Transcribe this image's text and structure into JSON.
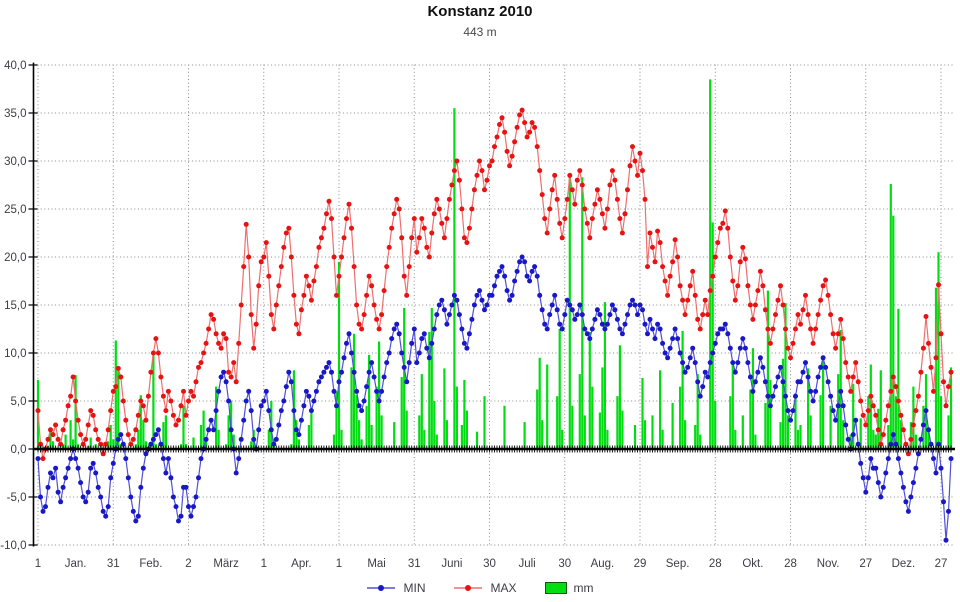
{
  "header": {
    "title": "Konstanz 2010",
    "subtitle": "443 m"
  },
  "legend": {
    "min_label": "MIN",
    "max_label": "MAX",
    "mm_label": "mm"
  },
  "chart_data": {
    "type": "line+bar",
    "title": "Konstanz 2010",
    "subtitle": "443 m",
    "grid": true,
    "legend_position": "bottom-center",
    "ylim": [
      -10,
      40
    ],
    "y_tick_step": 5,
    "y_tick_labels": [
      "40,0",
      "35,0",
      "30,0",
      "25,0",
      "20,0",
      "15,0",
      "10,0",
      "5,0",
      "0,0",
      "-5,0",
      "-10,0"
    ],
    "x_tick_days": [
      1,
      31,
      61,
      91,
      121,
      151,
      181,
      211,
      241,
      271,
      301,
      331,
      361
    ],
    "x_tick_labels": [
      "1",
      "31",
      "2",
      "1",
      "1",
      "31",
      "30",
      "30",
      "29",
      "28",
      "28",
      "27",
      "27"
    ],
    "month_labels": [
      "Jan.",
      "Feb.",
      "März",
      "Apr.",
      "Mai",
      "Juni",
      "Juli",
      "Aug.",
      "Sep.",
      "Okt.",
      "Nov.",
      "Dez."
    ],
    "days_in_month": [
      31,
      28,
      31,
      30,
      31,
      30,
      31,
      31,
      30,
      31,
      30,
      31
    ],
    "colors": {
      "min_marker": "#1818c8",
      "min_line": "#5050d8",
      "max_marker": "#e81212",
      "max_line": "#ef6f6f",
      "bar": "#00dd11",
      "bar_edge": "#0a5a0a",
      "axis": "#000000",
      "grid": "#8a8a8a",
      "label": "#3d3d46"
    },
    "series": [
      {
        "name": "MIN",
        "type": "line",
        "values": [
          -1,
          -5,
          -6.5,
          -6,
          -4,
          -2.5,
          -3,
          -2,
          -4.5,
          -5.5,
          -4,
          -3,
          -2,
          -1,
          0,
          -1,
          -2,
          -3.5,
          -5,
          -5.5,
          -4.5,
          -2,
          -1.5,
          -2.5,
          -4,
          -5,
          -6.5,
          -7,
          -6,
          -3,
          -1.5,
          0,
          1,
          1.5,
          0.5,
          -1,
          -3,
          -5,
          -6.5,
          -7.5,
          -7,
          -4,
          -2,
          -0.5,
          0,
          0.5,
          1,
          1.5,
          2,
          0.5,
          -1,
          -2.5,
          -1,
          -3,
          -5,
          -6,
          -7.5,
          -7,
          -4,
          -4,
          -6,
          -7,
          -6,
          -5,
          -3,
          -1,
          0,
          1,
          2,
          3,
          2,
          4,
          6,
          7.5,
          8,
          7,
          5,
          2,
          0,
          -2.5,
          -1,
          1,
          3,
          5,
          6,
          4,
          1,
          0,
          2,
          4.5,
          5,
          6,
          4,
          2,
          0.5,
          1,
          2.5,
          4,
          5,
          6.5,
          8,
          7,
          4,
          2,
          1.5,
          3,
          4.5,
          6,
          5.5,
          4,
          5,
          6,
          7,
          7.5,
          8,
          8.5,
          9,
          8,
          6,
          4.5,
          7,
          8,
          9.5,
          11,
          12,
          10,
          8,
          6,
          4.5,
          4,
          5,
          6.5,
          8,
          9,
          7.5,
          6,
          5,
          6,
          7.5,
          9,
          10,
          11.5,
          12.5,
          13,
          12,
          10,
          8.5,
          7,
          9,
          11,
          12.5,
          9,
          10,
          11.5,
          12,
          10.5,
          9.5,
          11,
          12.5,
          14,
          15,
          15.5,
          14.5,
          13,
          14,
          15,
          16,
          15.5,
          14,
          12.5,
          11,
          10.5,
          12,
          13.5,
          15,
          16,
          16.5,
          15.5,
          14.5,
          15,
          16,
          16,
          17,
          18,
          18.5,
          19,
          18,
          16.5,
          15.5,
          16,
          17.5,
          18.5,
          19.5,
          20,
          19.5,
          18,
          17.5,
          18.5,
          19,
          18,
          16,
          14.5,
          13,
          12.5,
          14,
          15,
          16,
          14.5,
          13,
          12.5,
          14,
          15.5,
          15,
          14.5,
          13.5,
          14,
          15,
          14,
          12.5,
          12,
          11.5,
          12.5,
          13.5,
          14.5,
          14,
          13,
          12.5,
          13,
          14,
          15,
          14.5,
          13.5,
          12.5,
          12,
          13,
          14,
          15,
          15.5,
          15,
          14,
          15,
          14.5,
          13,
          12,
          13.5,
          12.5,
          11.5,
          13,
          12.5,
          11,
          10,
          9.5,
          10.5,
          11.5,
          12.5,
          11.5,
          10,
          9,
          8,
          8.5,
          9.5,
          10.5,
          9,
          7,
          5.5,
          6.5,
          8,
          7.5,
          9,
          10,
          11,
          12,
          12.5,
          12.5,
          13,
          12,
          10.5,
          9,
          8,
          9,
          10.5,
          11.5,
          10.5,
          9,
          7.5,
          6,
          7,
          8,
          9.5,
          8.5,
          7,
          5.5,
          4.5,
          5.5,
          6.5,
          7.5,
          8.5,
          7,
          5.5,
          4,
          3,
          4,
          5.5,
          7,
          7,
          8,
          9,
          7.5,
          6,
          5,
          6,
          7.5,
          8.5,
          9.5,
          8.5,
          7,
          5.5,
          4,
          3,
          4.5,
          6,
          4.5,
          2.5,
          1,
          0,
          1.5,
          3,
          0.5,
          -1.5,
          -3,
          -4.5,
          -3,
          -1,
          -2,
          -2,
          -3.5,
          -5,
          -4,
          -2.5,
          -1,
          0.5,
          1.5,
          0.5,
          -1,
          -2.5,
          -4,
          -5.5,
          -6.5,
          -5,
          -3.5,
          -2,
          -0.5,
          1,
          2.5,
          4,
          2,
          0.5,
          -1,
          -2.5,
          0.5,
          -2,
          -5.5,
          -9.5,
          -6.5,
          -1
        ]
      },
      {
        "name": "MAX",
        "type": "line",
        "values": [
          4,
          0.5,
          -1,
          0,
          1,
          2,
          1.5,
          2.5,
          1,
          0.5,
          2,
          3,
          4.5,
          5.5,
          7.5,
          5,
          3,
          1.5,
          0.5,
          1,
          2.5,
          4,
          3.5,
          2,
          1,
          0.5,
          -0.5,
          0.5,
          2,
          4,
          6,
          6.5,
          8.4,
          7.5,
          5,
          3,
          1.5,
          0.5,
          1,
          2,
          3.5,
          5,
          4.5,
          3,
          5.5,
          8,
          10,
          11.5,
          10,
          7.5,
          5.5,
          4,
          6,
          5,
          3.5,
          2.5,
          3,
          4.5,
          6,
          3.5,
          5,
          6,
          5.5,
          7,
          8.5,
          9,
          10,
          11,
          12.5,
          14,
          13.5,
          12,
          11,
          10.5,
          12,
          11.5,
          8,
          7.5,
          9,
          7,
          11,
          15,
          19,
          23.4,
          20,
          14,
          10.5,
          13,
          17,
          19.5,
          20,
          21.5,
          18,
          14,
          12.5,
          15,
          17,
          19,
          21,
          22.5,
          23,
          20,
          16,
          13,
          12,
          14.5,
          16,
          18,
          17,
          15.5,
          17.5,
          19,
          21,
          22,
          23,
          24.5,
          25.8,
          24,
          20,
          16,
          18,
          20,
          22,
          24,
          25.5,
          23,
          19,
          15,
          13,
          12.5,
          14,
          16,
          18,
          17,
          15,
          13.5,
          12.5,
          14,
          16.5,
          19,
          21,
          23,
          24.5,
          26,
          25,
          22,
          18,
          16,
          19,
          22,
          24,
          20.5,
          22,
          24,
          23,
          21,
          20,
          22.5,
          24.5,
          26,
          25,
          23.5,
          22,
          24,
          26,
          27.5,
          29,
          30,
          28,
          25,
          22,
          21.5,
          23,
          25,
          27,
          28.5,
          30,
          29,
          27,
          28,
          29.5,
          30,
          31.5,
          32.5,
          33.8,
          34.5,
          33,
          31,
          29.5,
          30.5,
          32,
          33.5,
          34.8,
          35.3,
          34,
          32.5,
          33,
          34,
          33.5,
          31.5,
          29,
          26.5,
          24,
          22.5,
          25,
          27,
          28.5,
          26,
          23.5,
          22,
          24,
          26,
          28.5,
          27,
          25.5,
          28,
          29,
          27.5,
          25,
          23.5,
          22,
          24,
          25.5,
          27,
          26,
          24.5,
          23,
          25,
          27.5,
          29,
          28,
          26,
          24,
          22.5,
          24.5,
          27,
          29.5,
          31.5,
          30,
          28.5,
          30.8,
          29,
          26,
          19,
          22.5,
          21,
          19.5,
          22.7,
          21.5,
          19,
          17.5,
          16,
          18,
          19.5,
          21.8,
          20,
          17,
          15.5,
          14,
          15.5,
          17,
          18.5,
          16,
          13.5,
          12.5,
          14,
          15.5,
          14,
          16.5,
          18,
          20,
          21.5,
          23,
          23.5,
          24.8,
          23,
          20,
          17.5,
          15.5,
          17,
          19.5,
          21,
          19.8,
          17,
          15,
          13.5,
          15,
          16.5,
          18.5,
          17,
          14.5,
          12.5,
          11,
          12.5,
          14,
          15.5,
          17,
          15,
          12.5,
          10.5,
          9.5,
          11,
          12.5,
          14,
          13,
          14.5,
          16,
          14,
          12.5,
          11,
          12.5,
          14,
          15.5,
          17,
          17.6,
          16,
          14,
          12,
          10.5,
          12,
          13.5,
          11.5,
          9,
          7.5,
          6,
          7.5,
          9,
          7,
          5,
          3.5,
          2.5,
          4,
          5.5,
          4.5,
          3.5,
          2,
          0.5,
          1.5,
          3,
          4.5,
          6,
          7.5,
          6.5,
          5,
          3.5,
          2,
          0.5,
          -0.5,
          1,
          2.5,
          4,
          5.5,
          8,
          10.5,
          13.8,
          11,
          8.5,
          6,
          9.5,
          17.1,
          12,
          7,
          4.5,
          6.5,
          8
        ]
      },
      {
        "name": "mm",
        "type": "bar",
        "values": [
          7.2,
          0.5,
          0,
          0,
          0.3,
          2,
          0.8,
          0,
          0,
          0,
          0.5,
          1.5,
          0,
          3,
          1,
          7.7,
          0.5,
          0,
          0,
          0,
          0.3,
          1.2,
          0,
          0.5,
          0,
          0,
          0,
          0,
          0.8,
          2.5,
          1,
          11.3,
          8.5,
          0.5,
          0,
          0,
          0,
          0,
          0,
          0.5,
          2,
          5.6,
          3,
          0.8,
          0,
          0,
          9.8,
          0.5,
          0,
          0,
          2.8,
          3.5,
          0,
          0,
          0,
          0,
          0,
          0.5,
          4.5,
          0.5,
          0,
          0,
          1.2,
          0,
          0,
          2.5,
          4,
          1,
          0,
          0,
          0,
          6.5,
          2,
          0,
          0,
          0.5,
          3.5,
          5,
          1.5,
          0,
          0,
          0,
          0,
          0,
          0,
          0.8,
          2,
          0,
          0,
          0,
          0,
          0,
          2,
          5,
          1,
          0,
          0,
          0,
          0,
          0,
          0,
          0.5,
          8.2,
          3,
          1,
          0,
          0,
          0,
          2.5,
          4,
          0,
          0,
          0,
          0,
          0,
          0,
          0,
          0,
          1.5,
          6,
          19.5,
          2,
          0,
          0,
          0,
          8.5,
          12,
          5.6,
          3,
          1,
          0,
          4.5,
          9.8,
          2.5,
          0,
          6.5,
          11.2,
          3.5,
          0,
          0,
          0,
          0,
          2.8,
          0,
          0,
          7.5,
          14.7,
          4,
          0,
          0,
          0,
          0,
          3.5,
          7.8,
          2,
          0,
          12.2,
          14.7,
          5,
          1.5,
          0,
          0,
          8.4,
          3,
          0,
          0,
          35.5,
          6.5,
          0,
          2.5,
          7.2,
          4,
          0,
          0,
          0,
          1.8,
          0,
          0,
          5.5,
          0,
          0,
          0,
          0,
          0,
          0,
          0,
          4.5,
          0,
          0,
          0,
          0,
          0,
          0,
          0,
          2.8,
          0,
          0,
          0,
          0,
          6.2,
          9.5,
          3,
          0,
          8.8,
          0,
          0,
          0,
          5.5,
          12.5,
          2,
          0,
          0,
          28.4,
          4.5,
          0,
          0,
          7.8,
          28.3,
          3.5,
          0,
          12.2,
          6.5,
          0,
          0,
          3.8,
          8.5,
          15.3,
          2,
          0,
          0,
          0,
          5.5,
          10.8,
          4,
          0,
          0,
          0,
          0,
          2.5,
          0,
          0,
          7.4,
          3,
          0,
          0,
          3.5,
          0,
          0,
          8.2,
          2,
          0,
          0,
          0,
          4.8,
          0,
          0,
          6.5,
          12.3,
          3,
          0,
          0,
          0,
          2.5,
          7.8,
          1.5,
          0,
          0,
          0,
          38.5,
          23.6,
          5,
          0,
          0,
          0,
          0,
          0,
          5.5,
          8.8,
          2,
          0,
          0,
          3.5,
          0,
          0,
          6.2,
          10.5,
          1.5,
          0,
          0,
          0,
          4.8,
          16.5,
          7.2,
          0,
          0,
          0,
          2.8,
          9.4,
          15.2,
          3.5,
          0,
          0,
          5.8,
          2,
          2.5,
          0,
          0,
          8.4,
          3.5,
          0,
          0,
          0,
          5.6,
          9.2,
          0,
          0,
          4.5,
          0,
          0,
          7.8,
          12.4,
          3,
          0,
          0,
          1.5,
          6.8,
          0,
          0,
          3.2,
          0,
          0,
          5.5,
          8.8,
          2,
          1.5,
          4.2,
          8.2,
          0,
          0,
          2.5,
          27.6,
          24.3,
          5.5,
          14.6,
          3,
          0,
          0,
          0,
          2.8,
          6.5,
          1.5,
          0,
          0,
          4.5,
          7.8,
          2,
          0,
          0,
          16.8,
          20.5,
          5.5,
          0,
          0,
          3.5,
          8.5
        ]
      }
    ]
  }
}
